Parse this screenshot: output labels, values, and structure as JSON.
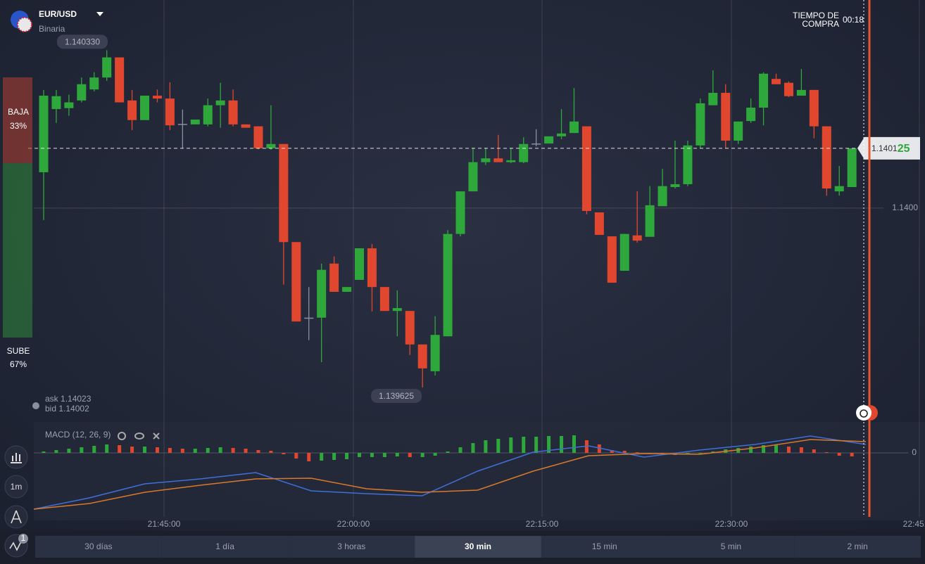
{
  "header": {
    "pair": "EUR/USD",
    "mode": "Binaria",
    "timer_label_1": "TIEMPO DE",
    "timer_label_2": "COMPRA",
    "timer": "00:18"
  },
  "sentiment": {
    "sell_label": "BAJA",
    "sell_value": 33,
    "sell_value_label": "33%",
    "buy_label": "SUBE",
    "buy_value": 67,
    "buy_value_label": "67%"
  },
  "quotes": {
    "ask_label": "ask",
    "ask": 1.14023,
    "bid_label": "bid",
    "bid": 1.14002
  },
  "chart_data": {
    "type": "candlestick",
    "open": [
      1.140075,
      1.140207,
      1.140209,
      1.140225,
      1.140248,
      1.140273,
      1.140315,
      1.140225,
      1.140184,
      1.140235,
      1.140229,
      1.140176,
      1.140175,
      1.140175,
      1.140215,
      1.140225,
      1.140175,
      1.140171,
      1.140125,
      1.140134,
      1.139929,
      1.139771,
      1.139771,
      1.139884,
      1.139825,
      1.13985,
      1.139916,
      1.139835,
      1.139785,
      1.139785,
      1.139715,
      1.139659,
      1.139732,
      1.139946,
      1.140035,
      1.140096,
      1.140104,
      1.140096,
      1.140096,
      1.140135,
      1.140135,
      1.14015,
      1.140157,
      1.140171,
      1.139991,
      1.139941,
      1.139869,
      1.139943,
      1.13994,
      1.140004,
      1.140044,
      1.14005,
      1.140131,
      1.140215,
      1.140241,
      1.140141,
      1.140182,
      1.14021,
      1.14027,
      1.140262,
      1.140235,
      1.140247,
      1.140171,
      1.140035,
      1.140044
    ],
    "high": [
      1.140247,
      1.140247,
      1.140237,
      1.140273,
      1.140284,
      1.14033,
      1.140315,
      1.140247,
      1.140235,
      1.140248,
      1.140263,
      1.140206,
      1.140185,
      1.140229,
      1.140262,
      1.140248,
      1.140175,
      1.140171,
      1.140215,
      1.140134,
      1.139929,
      1.139835,
      1.139884,
      1.139899,
      1.139835,
      1.139916,
      1.139925,
      1.139835,
      1.139828,
      1.139785,
      1.139715,
      1.139774,
      1.139954,
      1.140035,
      1.140126,
      1.140126,
      1.140153,
      1.140126,
      1.140148,
      1.140165,
      1.14015,
      1.140207,
      1.140251,
      1.140171,
      1.139991,
      1.139941,
      1.139946,
      1.140035,
      1.140046,
      1.140082,
      1.140141,
      1.140141,
      1.140229,
      1.140288,
      1.140259,
      1.140181,
      1.140229,
      1.140284,
      1.140281,
      1.140265,
      1.140291,
      1.140247,
      1.140171,
      1.140088,
      1.140125
    ],
    "low": [
      1.139975,
      1.140178,
      1.140193,
      1.140221,
      1.140244,
      1.140266,
      1.140221,
      1.140163,
      1.140184,
      1.140221,
      1.140163,
      1.140125,
      1.140175,
      1.140171,
      1.140168,
      1.140171,
      1.140168,
      1.140123,
      1.140122,
      1.13984,
      1.139763,
      1.139724,
      1.139678,
      1.139825,
      1.139825,
      1.13985,
      1.139784,
      1.139785,
      1.139732,
      1.139693,
      1.139625,
      1.13965,
      1.139732,
      1.139941,
      1.140035,
      1.14009,
      1.140096,
      1.140094,
      1.140094,
      1.140129,
      1.140135,
      1.140144,
      1.140157,
      1.139987,
      1.139944,
      1.139844,
      1.139869,
      1.139928,
      1.13994,
      1.140004,
      1.140041,
      1.140046,
      1.140125,
      1.140215,
      1.140125,
      1.140134,
      1.140178,
      1.140173,
      1.140259,
      1.140232,
      1.140235,
      1.140146,
      1.140026,
      1.140026,
      1.140044
    ],
    "close": [
      1.140235,
      1.140234,
      1.140221,
      1.140259,
      1.140273,
      1.140315,
      1.140221,
      1.140184,
      1.140235,
      1.140229,
      1.140173,
      1.140176,
      1.140185,
      1.140215,
      1.140225,
      1.140175,
      1.140168,
      1.140125,
      1.140134,
      1.139929,
      1.139763,
      1.139771,
      1.139871,
      1.139825,
      1.139835,
      1.139916,
      1.139835,
      1.139785,
      1.139791,
      1.139715,
      1.139665,
      1.139735,
      1.139946,
      1.140035,
      1.140096,
      1.140104,
      1.140096,
      1.1401,
      1.140134,
      1.140135,
      1.14015,
      1.140156,
      1.140181,
      1.139994,
      1.139944,
      1.139844,
      1.139946,
      1.139932,
      1.140006,
      1.140046,
      1.14005,
      1.140131,
      1.140219,
      1.140241,
      1.140141,
      1.140181,
      1.14021,
      1.140281,
      1.140259,
      1.140234,
      1.140247,
      1.140171,
      1.140041,
      1.140046,
      1.140125
    ],
    "up_color": "#2fa83b",
    "down_color": "#e1472f",
    "flat_color": "#8a8f9c",
    "ylim": [
      1.139553,
      1.140435
    ],
    "yticks": [
      {
        "value": 1.14,
        "label": "1.1400"
      }
    ],
    "xticks": [
      "21:45:00",
      "22:00:00",
      "22:15:00",
      "22:30:00",
      "22:45:00"
    ],
    "high_marker": {
      "value": 1.14033,
      "label": "1.140330"
    },
    "low_marker": {
      "value": 1.139625,
      "label": "1.139625"
    },
    "current_price": {
      "value": 1.140125,
      "label_main": "1.1401",
      "label_pips": "25"
    }
  },
  "macd": {
    "title": "MACD (12, 26, 9)",
    "ylim": [
      -9.1,
      4.4
    ],
    "yticks": [
      0
    ],
    "histogram": [
      0.2,
      0.4,
      0.6,
      0.8,
      1.0,
      1.2,
      1.1,
      0.9,
      0.9,
      0.8,
      0.7,
      0.6,
      0.6,
      0.7,
      0.8,
      0.7,
      0.6,
      0.4,
      0.3,
      -0.2,
      -0.8,
      -1.2,
      -1.1,
      -1.0,
      -0.9,
      -0.6,
      -0.6,
      -0.6,
      -0.5,
      -0.6,
      -0.6,
      -0.4,
      0.2,
      0.8,
      1.4,
      1.8,
      2.0,
      2.2,
      2.3,
      2.3,
      2.4,
      2.4,
      2.5,
      1.8,
      1.2,
      0.4,
      0.3,
      0.1,
      -0.1,
      -0.2,
      -0.3,
      -0.2,
      -0.1,
      0.2,
      0.5,
      0.7,
      0.9,
      1.1,
      1.1,
      0.9,
      0.8,
      0.5,
      0.1,
      -0.4,
      -0.5
    ],
    "macd_line": {
      "color": "#3f6fd8",
      "values": [
        -8.0,
        -6.4,
        -4.4,
        -3.7,
        -2.8,
        -5.4,
        -5.8,
        -6.1,
        -2.6,
        0.1,
        1.0,
        -0.6,
        0.4,
        1.2,
        2.4,
        1.2
      ]
    },
    "signal_line": {
      "color": "#d9792a",
      "values": [
        -8.0,
        -7.2,
        -5.6,
        -4.6,
        -3.7,
        -3.6,
        -5.1,
        -5.6,
        -5.3,
        -2.6,
        -0.4,
        -0.1,
        -0.2,
        0.7,
        1.9,
        1.6
      ]
    }
  },
  "tools": {
    "timeframe": "1m",
    "indicator_count": "1"
  },
  "timeframes": {
    "options": [
      "30 días",
      "1 día",
      "3 horas",
      "30 min",
      "15 min",
      "5 min",
      "2 min"
    ],
    "selected": 3
  }
}
